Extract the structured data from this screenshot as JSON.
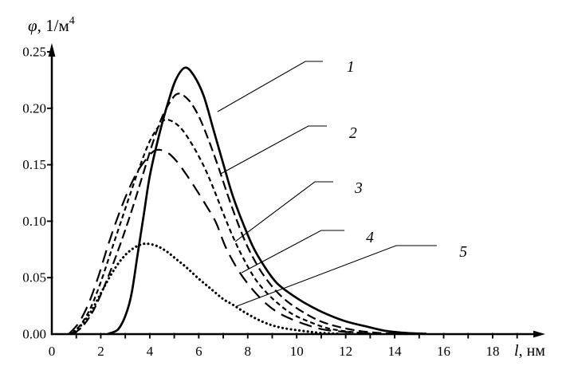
{
  "figure": {
    "background": "#ffffff",
    "ink_color": "#000000"
  },
  "chart_data": {
    "type": "line",
    "title": "",
    "xlabel": "l, нм",
    "xlabel_parts": {
      "italic": "l",
      "rest": ", нм"
    },
    "ylabel": "φ, 1/м⁴",
    "ylabel_parts": {
      "phi": "φ",
      "rest": ", 1/м",
      "superscript": "4"
    },
    "xlim": [
      0,
      20.2
    ],
    "ylim": [
      0,
      0.25
    ],
    "grid": false,
    "legend_position": "numbered-callouts-right",
    "x_tick_values": [
      0,
      2,
      4,
      6,
      8,
      10,
      12,
      14,
      16,
      18
    ],
    "x_tick_labels": [
      "0",
      "2",
      "4",
      "6",
      "8",
      "10",
      "12",
      "14",
      "16",
      "18"
    ],
    "x_minor_ticks": [
      1,
      2,
      3,
      4,
      5,
      6,
      7,
      8,
      9,
      10,
      11,
      12,
      13,
      14,
      15,
      16,
      17,
      18,
      19
    ],
    "y_tick_values": [
      0,
      0.05,
      0.1,
      0.15,
      0.2,
      0.25
    ],
    "y_tick_labels": [
      "0.00",
      "0.05",
      "0.10",
      "0.15",
      "0.20",
      "0.25"
    ],
    "series": [
      {
        "name": "1",
        "line_style": "solid",
        "peak": {
          "l": 5.45,
          "phi": 0.236
        },
        "points": [
          [
            2.3,
            0
          ],
          [
            2.7,
            0.004
          ],
          [
            3.0,
            0.016
          ],
          [
            3.25,
            0.035
          ],
          [
            3.5,
            0.07
          ],
          [
            3.75,
            0.105
          ],
          [
            4.0,
            0.14
          ],
          [
            4.4,
            0.178
          ],
          [
            4.8,
            0.209
          ],
          [
            5.1,
            0.227
          ],
          [
            5.45,
            0.236
          ],
          [
            5.8,
            0.229
          ],
          [
            6.2,
            0.211
          ],
          [
            6.6,
            0.181
          ],
          [
            7.0,
            0.151
          ],
          [
            7.35,
            0.125
          ],
          [
            7.7,
            0.104
          ],
          [
            8.2,
            0.078
          ],
          [
            8.65,
            0.061
          ],
          [
            9.2,
            0.045
          ],
          [
            10.0,
            0.032
          ],
          [
            10.9,
            0.021
          ],
          [
            11.9,
            0.012
          ],
          [
            12.8,
            0.007
          ],
          [
            13.6,
            0.003
          ],
          [
            14.5,
            0.001
          ],
          [
            15.3,
            0
          ]
        ]
      },
      {
        "name": "2",
        "line_style": "long-dash",
        "peak": {
          "l": 5.2,
          "phi": 0.213
        },
        "points": [
          [
            0.9,
            0
          ],
          [
            1.3,
            0.008
          ],
          [
            1.7,
            0.021
          ],
          [
            2.1,
            0.04
          ],
          [
            2.5,
            0.062
          ],
          [
            2.9,
            0.086
          ],
          [
            3.3,
            0.112
          ],
          [
            3.7,
            0.14
          ],
          [
            4.1,
            0.168
          ],
          [
            4.5,
            0.192
          ],
          [
            4.9,
            0.208
          ],
          [
            5.2,
            0.213
          ],
          [
            5.6,
            0.207
          ],
          [
            6.0,
            0.193
          ],
          [
            6.4,
            0.172
          ],
          [
            6.8,
            0.148
          ],
          [
            7.2,
            0.122
          ],
          [
            7.6,
            0.098
          ],
          [
            8.0,
            0.077
          ],
          [
            8.5,
            0.057
          ],
          [
            9.0,
            0.042
          ],
          [
            9.5,
            0.031
          ],
          [
            10.0,
            0.023
          ],
          [
            10.8,
            0.013
          ],
          [
            11.6,
            0.007
          ],
          [
            12.5,
            0.003
          ],
          [
            13.4,
            0.001
          ],
          [
            14.2,
            0
          ]
        ]
      },
      {
        "name": "3",
        "line_style": "short-dash",
        "peak": {
          "l": 4.7,
          "phi": 0.19
        },
        "points": [
          [
            0.8,
            0
          ],
          [
            1.2,
            0.009
          ],
          [
            1.6,
            0.024
          ],
          [
            2.0,
            0.046
          ],
          [
            2.4,
            0.072
          ],
          [
            2.8,
            0.098
          ],
          [
            3.2,
            0.124
          ],
          [
            3.6,
            0.149
          ],
          [
            4.0,
            0.171
          ],
          [
            4.4,
            0.185
          ],
          [
            4.7,
            0.19
          ],
          [
            5.2,
            0.184
          ],
          [
            5.7,
            0.169
          ],
          [
            6.2,
            0.149
          ],
          [
            6.6,
            0.129
          ],
          [
            7.0,
            0.107
          ],
          [
            7.4,
            0.086
          ],
          [
            7.8,
            0.068
          ],
          [
            8.3,
            0.049
          ],
          [
            8.8,
            0.036
          ],
          [
            9.3,
            0.026
          ],
          [
            9.8,
            0.018
          ],
          [
            10.5,
            0.011
          ],
          [
            11.3,
            0.005
          ],
          [
            12.2,
            0.002
          ],
          [
            13.2,
            0
          ]
        ]
      },
      {
        "name": "4",
        "line_style": "sparse-long-dash",
        "peak": {
          "l": 4.25,
          "phi": 0.163
        },
        "points": [
          [
            0.7,
            0
          ],
          [
            1.1,
            0.01
          ],
          [
            1.5,
            0.027
          ],
          [
            1.9,
            0.051
          ],
          [
            2.3,
            0.079
          ],
          [
            2.7,
            0.104
          ],
          [
            3.1,
            0.126
          ],
          [
            3.5,
            0.144
          ],
          [
            3.9,
            0.156
          ],
          [
            4.25,
            0.163
          ],
          [
            4.7,
            0.161
          ],
          [
            5.1,
            0.153
          ],
          [
            5.5,
            0.141
          ],
          [
            5.9,
            0.128
          ],
          [
            6.3,
            0.114
          ],
          [
            6.7,
            0.099
          ],
          [
            7.1,
            0.077
          ],
          [
            7.6,
            0.057
          ],
          [
            8.1,
            0.042
          ],
          [
            8.6,
            0.03
          ],
          [
            9.1,
            0.021
          ],
          [
            9.6,
            0.015
          ],
          [
            10.3,
            0.009
          ],
          [
            11.1,
            0.004
          ],
          [
            12.0,
            0.002
          ],
          [
            13.0,
            0
          ]
        ]
      },
      {
        "name": "5",
        "line_style": "dotted",
        "peak": {
          "l": 3.9,
          "phi": 0.08
        },
        "points": [
          [
            0.8,
            0
          ],
          [
            1.2,
            0.008
          ],
          [
            1.6,
            0.02
          ],
          [
            2.0,
            0.036
          ],
          [
            2.4,
            0.052
          ],
          [
            2.8,
            0.065
          ],
          [
            3.2,
            0.074
          ],
          [
            3.6,
            0.079
          ],
          [
            3.9,
            0.08
          ],
          [
            4.3,
            0.078
          ],
          [
            4.7,
            0.073
          ],
          [
            5.1,
            0.066
          ],
          [
            5.5,
            0.059
          ],
          [
            6.0,
            0.049
          ],
          [
            6.5,
            0.04
          ],
          [
            7.0,
            0.031
          ],
          [
            7.4,
            0.026
          ],
          [
            7.9,
            0.019
          ],
          [
            8.6,
            0.011
          ],
          [
            9.3,
            0.006
          ],
          [
            10.2,
            0.003
          ],
          [
            11.0,
            0.001
          ],
          [
            11.8,
            0
          ]
        ]
      }
    ],
    "callouts": [
      {
        "label": "1",
        "attach": [
          6.77,
          0.197
        ],
        "elbow": [
          10.35,
          0.2415
        ],
        "line_end": [
          11.07,
          0.2415
        ],
        "label_pos": [
          12.2,
          0.2366
        ]
      },
      {
        "label": "2",
        "attach": [
          6.9,
          0.142
        ],
        "elbow": [
          10.48,
          0.1843
        ],
        "line_end": [
          11.23,
          0.1843
        ],
        "label_pos": [
          12.3,
          0.178
        ]
      },
      {
        "label": "3",
        "attach": [
          7.49,
          0.082
        ],
        "elbow": [
          10.74,
          0.1349
        ],
        "line_end": [
          11.49,
          0.1349
        ],
        "label_pos": [
          12.53,
          0.1292
        ]
      },
      {
        "label": "4",
        "attach": [
          7.75,
          0.0544
        ],
        "elbow": [
          11.0,
          0.0918
        ],
        "line_end": [
          11.95,
          0.0918
        ],
        "label_pos": [
          12.99,
          0.0854
        ]
      },
      {
        "label": "5",
        "attach": [
          7.55,
          0.0247
        ],
        "elbow": [
          14.06,
          0.0784
        ],
        "line_end": [
          15.72,
          0.0784
        ],
        "label_pos": [
          16.8,
          0.0727
        ]
      }
    ]
  }
}
